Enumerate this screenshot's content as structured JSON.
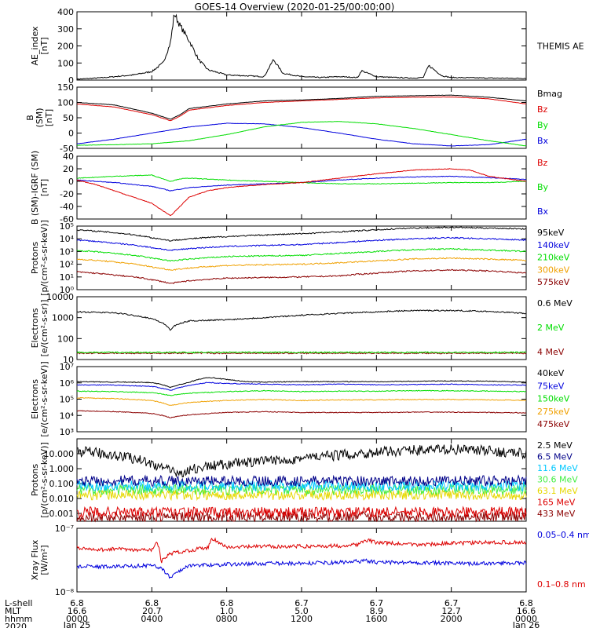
{
  "title": "GOES-14 Overview (2020-01-25/00:00:00)",
  "colors": {
    "black": "#000000",
    "blue": "#0000dd",
    "green": "#00dd00",
    "red": "#dd0000",
    "orange": "#f0a000",
    "yellow": "#e6d800",
    "lightgreen": "#44ee44",
    "cyan": "#00c8ff",
    "darkred": "#8b0000",
    "navy": "#000088"
  },
  "xaxis": {
    "row_labels": [
      "L-shell",
      "MLT",
      "hhmm",
      "2020"
    ],
    "columns": [
      {
        "lshell": "6.8",
        "mlt": "16.6",
        "hhmm": "0000",
        "date": "Jan 25"
      },
      {
        "lshell": "6.8",
        "mlt": "20.7",
        "hhmm": "0400",
        "date": ""
      },
      {
        "lshell": "6.8",
        "mlt": "1.0",
        "hhmm": "0800",
        "date": ""
      },
      {
        "lshell": "6.7",
        "mlt": "5.0",
        "hhmm": "1200",
        "date": ""
      },
      {
        "lshell": "6.7",
        "mlt": "8.9",
        "hhmm": "1600",
        "date": ""
      },
      {
        "lshell": "6.7",
        "mlt": "12.7",
        "hhmm": "2000",
        "date": ""
      },
      {
        "lshell": "6.8",
        "mlt": "16.6",
        "hhmm": "0000",
        "date": "Jan 26"
      }
    ]
  },
  "chart_data": [
    {
      "type": "line",
      "scale": "linear",
      "ylabel": [
        "AE_index",
        "[nT]"
      ],
      "ylim": [
        0,
        400
      ],
      "yticks": [
        "0",
        "100",
        "200",
        "300",
        "400"
      ],
      "series": [
        {
          "name": "THEMIS AE",
          "color": "#000000",
          "x": [
            0,
            1.5,
            3,
            4,
            4.6,
            5,
            5.2,
            5.5,
            6,
            6.5,
            7,
            8,
            9,
            10,
            10.5,
            11,
            12,
            13,
            14,
            15,
            15.2,
            16,
            17,
            18,
            18.5,
            18.8,
            19.5,
            20,
            22,
            24
          ],
          "y": [
            5,
            15,
            30,
            50,
            100,
            220,
            390,
            320,
            230,
            120,
            60,
            30,
            25,
            20,
            120,
            40,
            20,
            15,
            20,
            15,
            55,
            20,
            15,
            12,
            15,
            85,
            25,
            15,
            12,
            10
          ]
        }
      ]
    },
    {
      "type": "line",
      "scale": "linear",
      "ylabel": [
        "B",
        "(SM)",
        "[nT]"
      ],
      "ylim": [
        -50,
        150
      ],
      "yticks": [
        "-50",
        "0",
        "50",
        "100",
        "150"
      ],
      "series": [
        {
          "name": "Bx",
          "color": "#0000dd",
          "x": [
            0,
            2,
            4,
            6,
            8,
            10,
            12,
            14,
            16,
            18,
            20,
            22,
            24
          ],
          "y": [
            -35,
            -20,
            0,
            20,
            32,
            30,
            18,
            0,
            -20,
            -35,
            -42,
            -38,
            -20
          ]
        },
        {
          "name": "By",
          "color": "#00dd00",
          "x": [
            0,
            2,
            4,
            6,
            8,
            10,
            12,
            14,
            16,
            18,
            20,
            22,
            24
          ],
          "y": [
            -40,
            -38,
            -35,
            -25,
            -5,
            20,
            35,
            38,
            30,
            15,
            -5,
            -25,
            -42
          ]
        },
        {
          "name": "Bz",
          "color": "#dd0000",
          "x": [
            0,
            2,
            4,
            4.5,
            5,
            5.5,
            6,
            8,
            10,
            12,
            14,
            16,
            18,
            20,
            22,
            24
          ],
          "y": [
            95,
            85,
            60,
            50,
            40,
            55,
            75,
            90,
            100,
            105,
            110,
            115,
            117,
            118,
            112,
            95
          ]
        },
        {
          "name": "Bmag",
          "color": "#000000",
          "x": [
            0,
            2,
            4,
            4.5,
            5,
            5.5,
            6,
            8,
            10,
            12,
            14,
            16,
            18,
            20,
            22,
            24
          ],
          "y": [
            100,
            92,
            65,
            55,
            45,
            60,
            80,
            95,
            105,
            108,
            113,
            120,
            122,
            124,
            117,
            105
          ]
        }
      ]
    },
    {
      "type": "line",
      "scale": "linear",
      "ylabel": [
        "B (SM)-IGRF (SM)",
        "[nT]"
      ],
      "ylim": [
        -60,
        40
      ],
      "yticks": [
        "-60",
        "-40",
        "-20",
        "0",
        "20",
        "40"
      ],
      "series": [
        {
          "name": "Bx",
          "color": "#0000dd",
          "x": [
            0,
            2,
            4,
            5,
            6,
            8,
            10,
            12,
            14,
            16,
            18,
            20,
            22,
            24
          ],
          "y": [
            2,
            -2,
            -8,
            -15,
            -10,
            -6,
            -4,
            -2,
            2,
            5,
            7,
            8,
            6,
            3
          ]
        },
        {
          "name": "By",
          "color": "#00dd00",
          "x": [
            0,
            2,
            4,
            4.5,
            5,
            5.5,
            6,
            8,
            10,
            12,
            14,
            16,
            18,
            20,
            22,
            24
          ],
          "y": [
            5,
            8,
            10,
            5,
            0,
            4,
            5,
            2,
            0,
            -2,
            -4,
            -4,
            -3,
            -2,
            -2,
            0
          ]
        },
        {
          "name": "Bz",
          "color": "#dd0000",
          "x": [
            0,
            1,
            2,
            3,
            4,
            4.5,
            5,
            5.5,
            6,
            7,
            8,
            10,
            12,
            14,
            16,
            18,
            20,
            21,
            22,
            24
          ],
          "y": [
            2,
            -5,
            -15,
            -25,
            -35,
            -45,
            -55,
            -40,
            -25,
            -15,
            -10,
            -5,
            -2,
            5,
            12,
            18,
            20,
            18,
            8,
            0
          ]
        }
      ]
    },
    {
      "type": "line",
      "scale": "log",
      "ylabel": [
        "Protons",
        "[p/(cm²-s-sr-keV)]"
      ],
      "ylim": [
        1,
        100000
      ],
      "yticks": [
        "10⁰",
        "10¹",
        "10²",
        "10³",
        "10⁴",
        "10⁵"
      ],
      "series": [
        {
          "name": "575keV",
          "color": "#8b0000",
          "x": [
            0,
            2,
            4,
            5,
            6,
            8,
            10,
            12,
            14,
            16,
            18,
            20,
            22,
            24
          ],
          "y": [
            25,
            14,
            6,
            3,
            5,
            8,
            9,
            10,
            12,
            20,
            30,
            35,
            30,
            20
          ]
        },
        {
          "name": "300keV",
          "color": "#f0a000",
          "x": [
            0,
            2,
            4,
            5,
            6,
            8,
            10,
            12,
            14,
            16,
            18,
            20,
            22,
            24
          ],
          "y": [
            250,
            150,
            60,
            35,
            50,
            80,
            90,
            100,
            130,
            180,
            260,
            300,
            250,
            200
          ]
        },
        {
          "name": "210keV",
          "color": "#00dd00",
          "x": [
            0,
            2,
            4,
            5,
            6,
            8,
            10,
            12,
            14,
            16,
            18,
            20,
            22,
            24
          ],
          "y": [
            1200,
            700,
            300,
            180,
            250,
            400,
            450,
            500,
            700,
            1000,
            1400,
            1600,
            1300,
            1000
          ]
        },
        {
          "name": "140keV",
          "color": "#0000dd",
          "x": [
            0,
            2,
            4,
            5,
            6,
            8,
            10,
            12,
            14,
            16,
            18,
            20,
            22,
            24
          ],
          "y": [
            8000,
            4500,
            2000,
            1200,
            1700,
            2500,
            3000,
            3500,
            5000,
            7500,
            10000,
            12000,
            10000,
            8000
          ]
        },
        {
          "name": "95keV",
          "color": "#000000",
          "x": [
            0,
            2,
            4,
            5,
            6,
            8,
            10,
            12,
            14,
            16,
            18,
            20,
            22,
            24
          ],
          "y": [
            50000,
            30000,
            12000,
            7000,
            10000,
            15000,
            20000,
            25000,
            35000,
            50000,
            70000,
            80000,
            70000,
            60000
          ]
        }
      ]
    },
    {
      "type": "line",
      "scale": "log",
      "ylabel": [
        "Electrons",
        "[e/(cm²-s-sr)]"
      ],
      "ylim": [
        10,
        10000
      ],
      "yticks": [
        "10",
        "100",
        "1000",
        "10000"
      ],
      "series": [
        {
          "name": "4 MeV",
          "color": "#8b0000",
          "x": [
            0,
            24
          ],
          "y": [
            20,
            20
          ]
        },
        {
          "name": "2 MeV",
          "color": "#00dd00",
          "x": [
            0,
            24
          ],
          "y": [
            22,
            22
          ]
        },
        {
          "name": "0.6 MeV",
          "color": "#000000",
          "x": [
            0,
            2,
            4,
            4.8,
            5,
            5.2,
            6,
            7,
            8,
            10,
            12,
            14,
            16,
            18,
            20,
            22,
            24
          ],
          "y": [
            1900,
            1700,
            900,
            400,
            250,
            400,
            700,
            750,
            800,
            1000,
            1300,
            1600,
            1900,
            2200,
            2200,
            2000,
            1600
          ]
        }
      ]
    },
    {
      "type": "line",
      "scale": "log",
      "ylabel": [
        "Electrons",
        "[e/(cm²-s-sr-keV)]"
      ],
      "ylim": [
        100,
        10000000
      ],
      "yticks": [
        "10³",
        "10⁴",
        "10⁵",
        "10⁶",
        "10⁷"
      ],
      "series": [
        {
          "name": "475keV",
          "color": "#8b0000",
          "x": [
            0,
            2,
            4,
            5,
            6,
            8,
            10,
            12,
            14,
            16,
            18,
            20,
            22,
            24
          ],
          "y": [
            4000,
            3500,
            2500,
            1200,
            2000,
            3000,
            3500,
            3000,
            3000,
            3000,
            3200,
            3200,
            3000,
            2800
          ]
        },
        {
          "name": "275keV",
          "color": "#f0a000",
          "x": [
            0,
            2,
            4,
            5,
            6,
            8,
            10,
            12,
            14,
            16,
            18,
            20,
            22,
            24
          ],
          "y": [
            40000,
            35000,
            25000,
            10000,
            18000,
            25000,
            30000,
            25000,
            28000,
            28000,
            30000,
            30000,
            28000,
            26000
          ]
        },
        {
          "name": "150keV",
          "color": "#00dd00",
          "x": [
            0,
            2,
            4,
            5,
            6,
            8,
            10,
            12,
            14,
            16,
            18,
            20,
            22,
            24
          ],
          "y": [
            130000,
            120000,
            100000,
            60000,
            90000,
            120000,
            140000,
            120000,
            130000,
            130000,
            140000,
            140000,
            130000,
            120000
          ]
        },
        {
          "name": "75keV",
          "color": "#0000dd",
          "x": [
            0,
            2,
            4,
            5,
            6,
            7,
            8,
            10,
            12,
            14,
            16,
            18,
            20,
            22,
            24
          ],
          "y": [
            400000,
            380000,
            300000,
            150000,
            350000,
            600000,
            500000,
            450000,
            400000,
            450000,
            400000,
            420000,
            450000,
            400000,
            380000
          ]
        },
        {
          "name": "40keV",
          "color": "#000000",
          "x": [
            0,
            2,
            4,
            5,
            6,
            7,
            8,
            9,
            10,
            12,
            14,
            16,
            18,
            20,
            22,
            24
          ],
          "y": [
            700000,
            650000,
            600000,
            250000,
            600000,
            1500000,
            1000000,
            700000,
            650000,
            700000,
            700000,
            700000,
            750000,
            800000,
            750000,
            650000
          ]
        }
      ]
    },
    {
      "type": "line",
      "scale": "log",
      "ylabel": [
        "Protons",
        "[p/(cm²-s-sr-keV)]"
      ],
      "ylim": [
        0.0003,
        100
      ],
      "yticks": [
        "0.001",
        "0.010",
        "0.100",
        "1.000",
        "10.000"
      ],
      "series": [
        {
          "name": "433 MeV",
          "color": "#8b0000",
          "x": [
            0,
            24
          ],
          "y": [
            0.0006,
            0.0006
          ]
        },
        {
          "name": "165 MeV",
          "color": "#dd0000",
          "x": [
            0,
            24
          ],
          "y": [
            0.0012,
            0.0012
          ]
        },
        {
          "name": "63.1 MeV",
          "color": "#e6d800",
          "x": [
            0,
            24
          ],
          "y": [
            0.018,
            0.018
          ]
        },
        {
          "name": "30.6 MeV",
          "color": "#44ee44",
          "x": [
            0,
            24
          ],
          "y": [
            0.04,
            0.04
          ]
        },
        {
          "name": "11.6 MeV",
          "color": "#00c8ff",
          "x": [
            0,
            24
          ],
          "y": [
            0.07,
            0.07
          ]
        },
        {
          "name": "6.5 MeV",
          "color": "#000088",
          "x": [
            0,
            24
          ],
          "y": [
            0.15,
            0.15
          ]
        },
        {
          "name": "2.5 MeV",
          "color": "#000000",
          "x": [
            0,
            2,
            4,
            5,
            5.5,
            6,
            8,
            10,
            12,
            14,
            16,
            18,
            20,
            22,
            24
          ],
          "y": [
            15,
            8,
            2,
            0.6,
            0.5,
            0.8,
            2,
            3,
            5,
            8,
            12,
            18,
            20,
            15,
            10
          ]
        }
      ]
    },
    {
      "type": "line",
      "scale": "log",
      "ylabel": [
        "Xray Flux",
        "[W/m²]"
      ],
      "ylim": [
        1e-08,
        1e-07
      ],
      "yticks": [
        "10⁻⁸",
        "10⁻⁷"
      ],
      "series": [
        {
          "name": "0.1–0.8 nm",
          "color": "#dd0000",
          "x": [
            0,
            1,
            2,
            3,
            4,
            4.3,
            4.5,
            5,
            6,
            7,
            7.2,
            8,
            10,
            12,
            14,
            15,
            15.5,
            16,
            18,
            20,
            22,
            24
          ],
          "y": [
            5e-08,
            4.5e-08,
            4.8e-08,
            4.5e-08,
            4.6e-08,
            6e-08,
            3e-08,
            4e-08,
            4.5e-08,
            5e-08,
            7e-08,
            5e-08,
            5.2e-08,
            5.2e-08,
            5.3e-08,
            5.6e-08,
            6.5e-08,
            6e-08,
            5.5e-08,
            5.8e-08,
            6e-08,
            6e-08
          ]
        },
        {
          "name": "0.05–0.4 nm",
          "color": "#0000dd",
          "x": [
            0,
            2,
            4,
            4.5,
            5,
            5.3,
            6,
            8,
            10,
            12,
            14,
            15.5,
            16,
            18,
            20,
            22,
            24
          ],
          "y": [
            2.5e-08,
            2.5e-08,
            2.6e-08,
            2.4e-08,
            1.6e-08,
            2e-08,
            2.6e-08,
            2.7e-08,
            2.8e-08,
            2.8e-08,
            2.9e-08,
            3.1e-08,
            2.9e-08,
            2.9e-08,
            2.8e-08,
            2.8e-08,
            2.9e-08
          ]
        }
      ]
    }
  ]
}
